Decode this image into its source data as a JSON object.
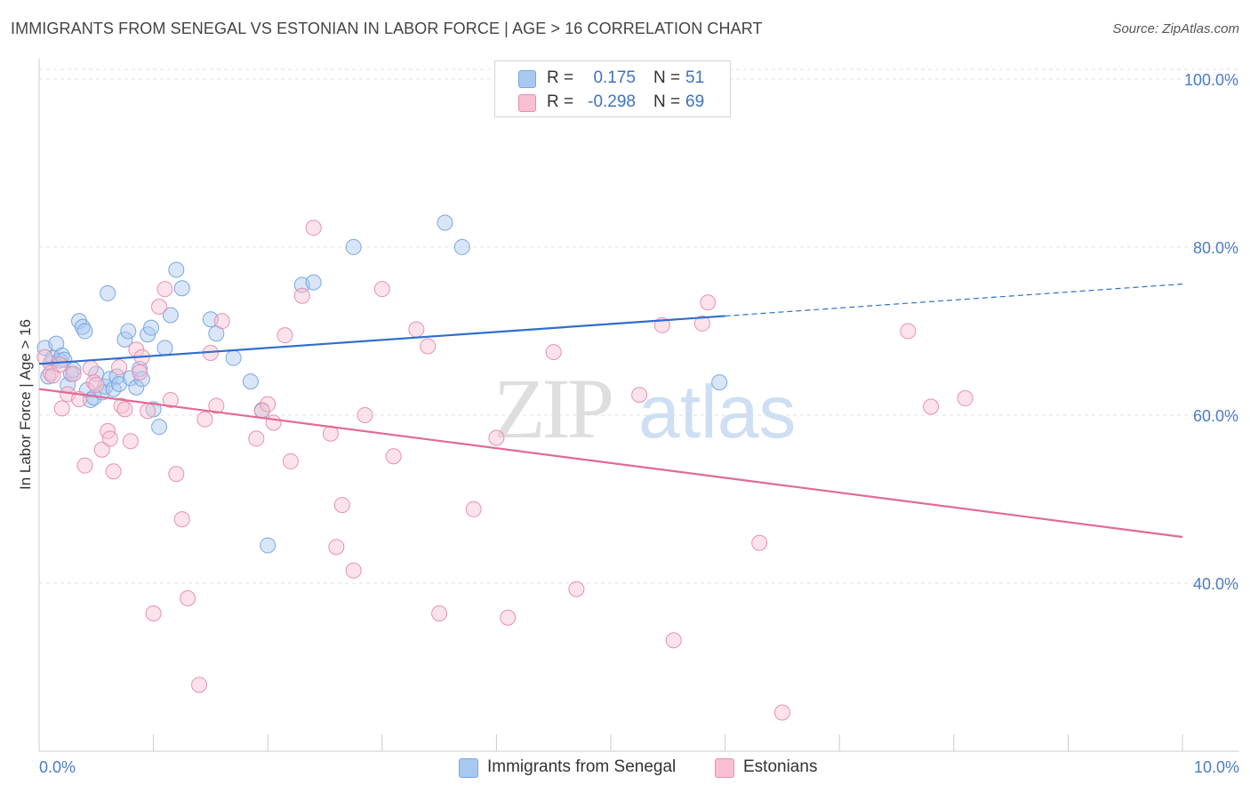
{
  "header": {
    "title": "IMMIGRANTS FROM SENEGAL VS ESTONIAN IN LABOR FORCE | AGE > 16 CORRELATION CHART",
    "source": "Source: ZipAtlas.com"
  },
  "watermark": {
    "zip": "ZIP",
    "atlas": "atlas"
  },
  "legend": {
    "rows": [
      {
        "r_label": "R =",
        "r_value": "0.175",
        "n_label": "N =",
        "n_value": "51",
        "color": "#a9c8f0",
        "border": "#7aa7e0"
      },
      {
        "r_label": "R =",
        "r_value": "-0.298",
        "n_label": "N =",
        "n_value": "69",
        "color": "#f8c0d2",
        "border": "#e890ad"
      }
    ]
  },
  "chart_data": {
    "type": "scatter",
    "title": "IMMIGRANTS FROM SENEGAL VS ESTONIAN IN LABOR FORCE | AGE > 16 CORRELATION CHART",
    "xlabel": "",
    "ylabel": "In Labor Force | Age > 16",
    "xlim": [
      0,
      10
    ],
    "ylim": [
      20,
      102
    ],
    "x_ticks": [
      "0.0%",
      "10.0%"
    ],
    "y_ticks": [
      {
        "value": 40,
        "label": "40.0%"
      },
      {
        "value": 60,
        "label": "60.0%"
      },
      {
        "value": 80,
        "label": "80.0%"
      },
      {
        "value": 100,
        "label": "100.0%"
      }
    ],
    "grid": true,
    "legend_position": "bottom",
    "series": [
      {
        "name": "Immigrants from Senegal",
        "color": "#a9c8f0",
        "stroke": "#7aa7e0",
        "trend_color": "#2f6fcc",
        "trend": {
          "x0": 0.0,
          "y0": 66.1,
          "x1": 6.0,
          "y1": 71.8,
          "x_dash_end": 10.0,
          "y_dash_end": 75.6
        },
        "x": [
          0.05,
          0.08,
          0.1,
          0.12,
          0.15,
          0.18,
          0.2,
          0.22,
          0.25,
          0.28,
          0.35,
          0.38,
          0.4,
          0.42,
          0.45,
          0.48,
          0.5,
          0.55,
          0.58,
          0.6,
          0.62,
          0.65,
          0.68,
          0.7,
          0.75,
          0.78,
          0.8,
          0.85,
          0.88,
          0.9,
          0.95,
          0.98,
          1.0,
          1.05,
          1.1,
          1.15,
          1.2,
          1.25,
          1.5,
          1.55,
          1.7,
          1.85,
          1.95,
          2.0,
          2.3,
          2.4,
          2.75,
          3.55,
          3.7,
          5.95,
          0.3
        ],
        "y": [
          68.0,
          64.6,
          66.2,
          66.8,
          68.5,
          66.5,
          67.1,
          66.6,
          63.6,
          64.9,
          71.2,
          70.5,
          70.0,
          63.0,
          61.8,
          62.1,
          64.9,
          62.7,
          63.4,
          74.5,
          64.3,
          63.1,
          64.6,
          63.7,
          69.0,
          70.0,
          64.4,
          63.3,
          65.5,
          64.3,
          69.6,
          70.4,
          60.7,
          58.6,
          68.0,
          71.9,
          77.3,
          75.1,
          71.4,
          69.7,
          66.8,
          64.0,
          60.6,
          44.5,
          75.5,
          75.8,
          80.0,
          82.9,
          80.0,
          63.9,
          65.4
        ]
      },
      {
        "name": "Estonians",
        "color": "#f8c0d2",
        "stroke": "#e890ad",
        "trend_color": "#e16a95",
        "trend": {
          "x0": 0.0,
          "y0": 63.1,
          "x1": 10.0,
          "y1": 45.5
        },
        "x": [
          0.05,
          0.1,
          0.12,
          0.18,
          0.2,
          0.25,
          0.3,
          0.35,
          0.4,
          0.45,
          0.48,
          0.5,
          0.55,
          0.6,
          0.62,
          0.65,
          0.7,
          0.72,
          0.75,
          0.8,
          0.85,
          0.88,
          0.9,
          0.95,
          1.0,
          1.05,
          1.1,
          1.15,
          1.2,
          1.25,
          1.3,
          1.4,
          1.45,
          1.5,
          1.55,
          1.6,
          1.9,
          1.95,
          2.0,
          2.05,
          2.2,
          2.3,
          2.4,
          2.55,
          2.6,
          2.65,
          2.75,
          2.85,
          3.0,
          3.1,
          3.3,
          3.4,
          3.5,
          3.8,
          4.0,
          4.1,
          4.5,
          4.7,
          5.25,
          5.45,
          5.55,
          5.8,
          5.85,
          6.3,
          6.5,
          7.6,
          7.8,
          8.1,
          2.15
        ],
        "y": [
          66.9,
          65.0,
          64.7,
          66.0,
          60.8,
          62.5,
          64.9,
          61.9,
          54.0,
          65.6,
          63.9,
          63.6,
          55.9,
          58.1,
          57.2,
          53.3,
          65.7,
          61.1,
          60.7,
          56.9,
          67.8,
          65.1,
          66.9,
          60.5,
          36.4,
          72.9,
          75.0,
          61.8,
          53.0,
          47.6,
          38.2,
          27.9,
          59.5,
          67.4,
          61.1,
          71.2,
          57.2,
          60.5,
          61.3,
          59.1,
          54.5,
          74.2,
          82.3,
          57.8,
          44.3,
          49.3,
          41.5,
          60.0,
          75.0,
          55.1,
          70.2,
          68.2,
          36.4,
          48.8,
          57.3,
          35.9,
          67.5,
          39.3,
          62.4,
          70.7,
          33.2,
          70.9,
          73.4,
          44.8,
          24.6,
          70.0,
          61.0,
          62.0,
          69.5
        ]
      }
    ]
  },
  "bottom_legend": {
    "items": [
      {
        "label": "Immigrants from Senegal",
        "color": "#a9c8f0",
        "border": "#7aa7e0"
      },
      {
        "label": "Estonians",
        "color": "#f8c0d2",
        "border": "#e890ad"
      }
    ]
  }
}
